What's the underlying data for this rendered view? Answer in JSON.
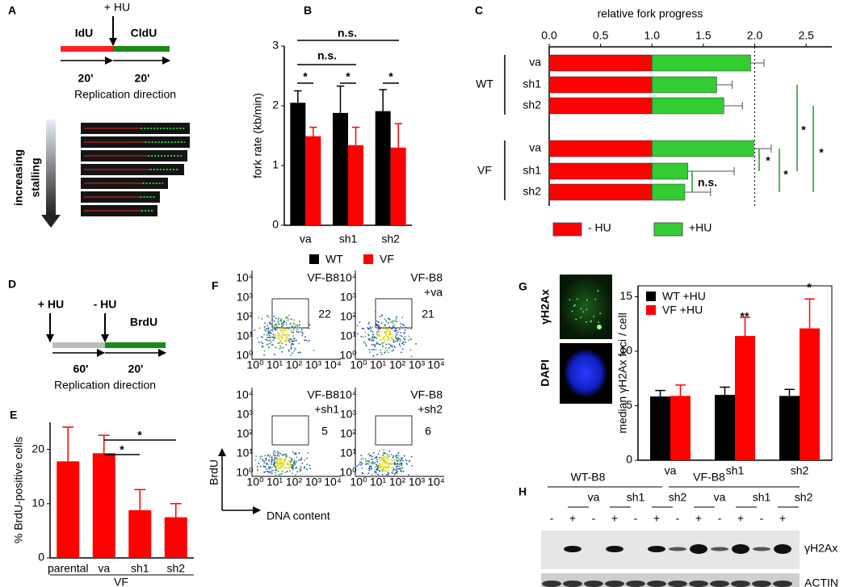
{
  "chart_data": [
    {
      "type": "bar",
      "panel": "B",
      "ylabel": "fork rate  (kb/min)",
      "categories": [
        "va",
        "sh1",
        "sh2"
      ],
      "series": [
        {
          "name": "WT",
          "color": "#000000",
          "values": [
            2.05,
            1.88,
            1.91
          ],
          "errors": [
            0.2,
            0.45,
            0.36
          ]
        },
        {
          "name": "VF",
          "color": "#ff0000",
          "values": [
            1.49,
            1.34,
            1.3
          ],
          "errors": [
            0.15,
            0.3,
            0.4
          ]
        }
      ],
      "ylim": [
        0,
        3
      ],
      "yticks": [
        0,
        1,
        2,
        3
      ],
      "annotations": [
        "*",
        "*",
        "*",
        "n.s.",
        "n.s."
      ]
    },
    {
      "type": "barh",
      "panel": "C",
      "stacked": true,
      "title": "relative fork progress",
      "categories": [
        "va",
        "sh1",
        "sh2",
        "va",
        "sh1",
        "sh2"
      ],
      "groups": [
        "WT",
        "VF"
      ],
      "series": [
        {
          "name": "- HU",
          "color": "#ff0000",
          "values": [
            1,
            1,
            1,
            1,
            1,
            1
          ]
        },
        {
          "name": "+HU",
          "color": "#33cc33",
          "values": [
            0.96,
            0.63,
            0.7,
            0.99,
            0.35,
            0.32
          ],
          "errors": [
            0.13,
            0.15,
            0.18,
            0.17,
            0.45,
            0.25
          ]
        }
      ],
      "xlim": [
        0,
        2.75
      ],
      "xticks": [
        {
          "value": 0,
          "label": "0.0"
        },
        0.5,
        {
          "value": 1,
          "label": "1.0"
        },
        1.5,
        {
          "value": 2,
          "label": "2.0"
        },
        2.5
      ],
      "reference_line": 2,
      "annotations": [
        "*",
        "*",
        "*",
        "*",
        "n.s."
      ]
    },
    {
      "type": "bar",
      "panel": "E",
      "ylabel": "% BrdU-positive cells",
      "xlabel": "VF",
      "categories": [
        "parental",
        "va",
        "sh1",
        "sh2"
      ],
      "series": [
        {
          "color": "#ff0000",
          "values": [
            17.8,
            19.3,
            8.8,
            7.5
          ],
          "errors": [
            6.3,
            3.3,
            3.8,
            2.5
          ]
        }
      ],
      "ylim": [
        0,
        25
      ],
      "yticks": [
        0,
        10,
        20
      ],
      "annotations": [
        "*",
        "*"
      ]
    },
    {
      "type": "bar",
      "panel": "G",
      "ylabel": "median γH2Ax foci / cell",
      "categories": [
        "va",
        "sh1",
        "sh2"
      ],
      "series": [
        {
          "name": "WT +HU",
          "color": "#000000",
          "values": [
            5.85,
            6.0,
            5.9
          ],
          "errors": [
            0.55,
            0.7,
            0.6
          ]
        },
        {
          "name": "VF +HU",
          "color": "#ff0000",
          "values": [
            5.9,
            11.4,
            12.1
          ],
          "errors": [
            1.0,
            1.7,
            2.7
          ]
        }
      ],
      "ylim": [
        0,
        16
      ],
      "yticks": [
        0,
        5,
        10,
        15
      ],
      "annotations": [
        "**",
        "*"
      ]
    }
  ],
  "panel_a": {
    "label": "A",
    "treatment": "+ HU",
    "labels": [
      "IdU",
      "CldU"
    ],
    "durations": [
      "20'",
      "20'"
    ],
    "caption": "Replication direction",
    "gradient_label": [
      "increasing",
      "stalling"
    ]
  },
  "panel_d": {
    "label": "D",
    "treatments": [
      "+ HU",
      "- HU"
    ],
    "stain": "BrdU",
    "durations": [
      "60'",
      "20'"
    ],
    "caption": "Replication direction"
  },
  "panel_f": {
    "label": "F",
    "plots": [
      {
        "name": [
          "VF-B8"
        ],
        "percent": 22
      },
      {
        "name": [
          "VF-B8",
          "+va"
        ],
        "percent": 21
      },
      {
        "name": [
          "VF-B8",
          "+sh1"
        ],
        "percent": 5
      },
      {
        "name": [
          "VF-B8",
          "+sh2"
        ],
        "percent": 6
      }
    ],
    "ticks": [
      "10⁰",
      "10¹",
      "10²",
      "10³",
      "10⁴"
    ],
    "ylabel": "BrdU",
    "xlabel": "DNA content"
  },
  "panel_g_images": {
    "stains": [
      "γH2Ax",
      "DAPI"
    ]
  },
  "panel_h": {
    "label": "H",
    "lines": [
      "WT-B8",
      "VF-B8"
    ],
    "constructs": [
      "va",
      "sh1",
      "sh2",
      "va",
      "sh1",
      "sh2"
    ],
    "hu": [
      "-",
      "+",
      "-",
      "+",
      "-",
      "+",
      "-",
      "+",
      "-",
      "+",
      "-",
      "+"
    ],
    "proteins": [
      "γH2Ax",
      "ACTIN"
    ]
  }
}
